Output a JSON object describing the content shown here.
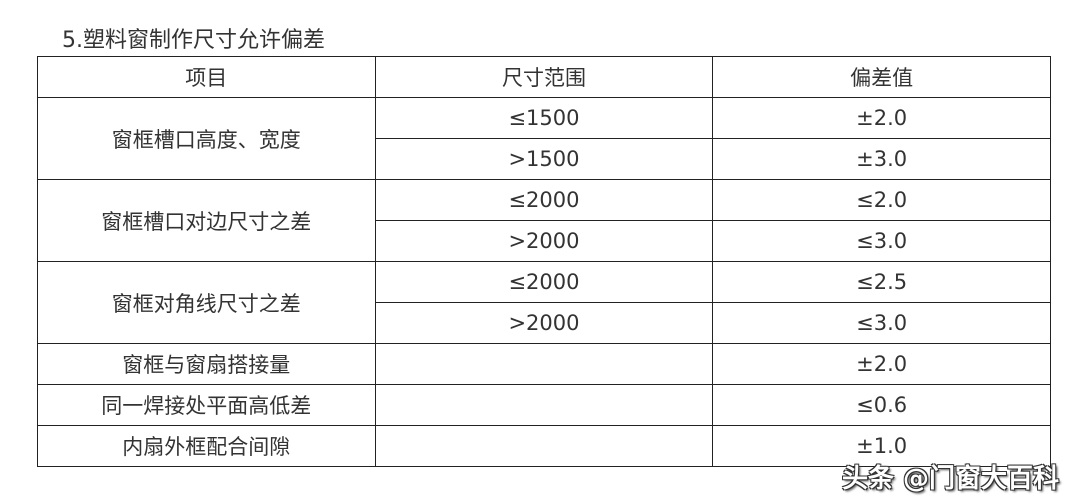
{
  "title": "5.塑料窗制作尺寸允许偏差",
  "table": {
    "headers": [
      "项目",
      "尺寸范围",
      "偏差值"
    ],
    "groups": [
      {
        "item": "窗框槽口高度、宽度",
        "rows": [
          [
            "≤1500",
            "±2.0"
          ],
          [
            ">1500",
            "±3.0"
          ]
        ]
      },
      {
        "item": "窗框槽口对边尺寸之差",
        "rows": [
          [
            "≤2000",
            "≤2.0"
          ],
          [
            ">2000",
            "≤3.0"
          ]
        ]
      },
      {
        "item": "窗框对角线尺寸之差",
        "rows": [
          [
            "≤2000",
            "≤2.5"
          ],
          [
            ">2000",
            "≤3.0"
          ]
        ]
      },
      {
        "item": "窗框与窗扇搭接量",
        "rows": [
          [
            "",
            "±2.0"
          ]
        ]
      },
      {
        "item": "同一焊接处平面高低差",
        "rows": [
          [
            "",
            "≤0.6"
          ]
        ]
      },
      {
        "item": "内扇外框配合间隙",
        "rows": [
          [
            "",
            "±1.0"
          ]
        ]
      }
    ]
  },
  "watermark": "头条 @门窗大百科"
}
